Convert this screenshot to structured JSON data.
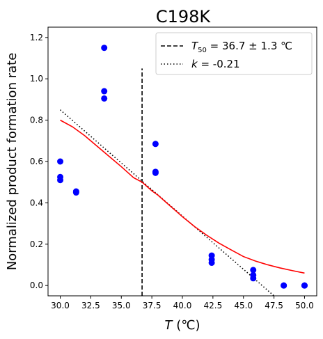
{
  "chart_data": {
    "type": "scatter",
    "title": "C198K",
    "xlabel": {
      "main": "T",
      "unit": " (℃)"
    },
    "ylabel": "Normalized product formation rate",
    "xlim": [
      29.0,
      51.0
    ],
    "ylim": [
      -0.05,
      1.25
    ],
    "x_ticks": [
      "30.0",
      "32.5",
      "35.0",
      "37.5",
      "40.0",
      "42.5",
      "45.0",
      "47.5",
      "50.0"
    ],
    "y_ticks": [
      "0.0",
      "0.2",
      "0.4",
      "0.6",
      "0.8",
      "1.0",
      "1.2"
    ],
    "points": {
      "color": "#0000ff",
      "x": [
        30.0,
        30.0,
        30.0,
        31.3,
        31.3,
        33.6,
        33.6,
        33.6,
        37.8,
        37.8,
        37.8,
        42.4,
        42.4,
        42.4,
        45.8,
        45.8,
        45.8,
        48.3,
        48.3,
        50.0,
        50.0
      ],
      "y": [
        0.6,
        0.525,
        0.51,
        0.455,
        0.45,
        1.15,
        0.94,
        0.905,
        0.685,
        0.55,
        0.545,
        0.145,
        0.125,
        0.11,
        0.075,
        0.05,
        0.035,
        0.0,
        0.0,
        0.0,
        0.0
      ]
    },
    "fit_curve": {
      "color": "#ff0000",
      "x": [
        30.0,
        31.0,
        32.0,
        33.0,
        34.0,
        35.0,
        36.0,
        36.7,
        37.5,
        38.0,
        39.0,
        40.0,
        41.0,
        42.0,
        43.0,
        44.0,
        45.0,
        46.0,
        47.0,
        48.0,
        49.0,
        50.0
      ],
      "y": [
        0.8,
        0.768,
        0.725,
        0.675,
        0.625,
        0.575,
        0.522,
        0.5,
        0.458,
        0.437,
        0.385,
        0.333,
        0.285,
        0.243,
        0.205,
        0.172,
        0.14,
        0.118,
        0.1,
        0.085,
        0.072,
        0.06
      ]
    },
    "series": [
      {
        "name": "T50 = 36.7 ± 1.3 ℃",
        "legend": {
          "sym": "T",
          "sub": "50",
          "rest": " = 36.7 ± 1.3 ℃"
        },
        "style": "dashed",
        "color": "#000000",
        "x": [
          36.7,
          36.7
        ],
        "y": [
          -0.05,
          1.05
        ]
      },
      {
        "name": "k = -0.21",
        "legend": {
          "sym": "k",
          "sub": "",
          "rest": " = -0.21"
        },
        "style": "dotted",
        "color": "#000000",
        "x": [
          30.0,
          47.5
        ],
        "y": [
          0.85,
          -0.05
        ]
      }
    ],
    "legend_position": "top-right",
    "grid": false
  }
}
